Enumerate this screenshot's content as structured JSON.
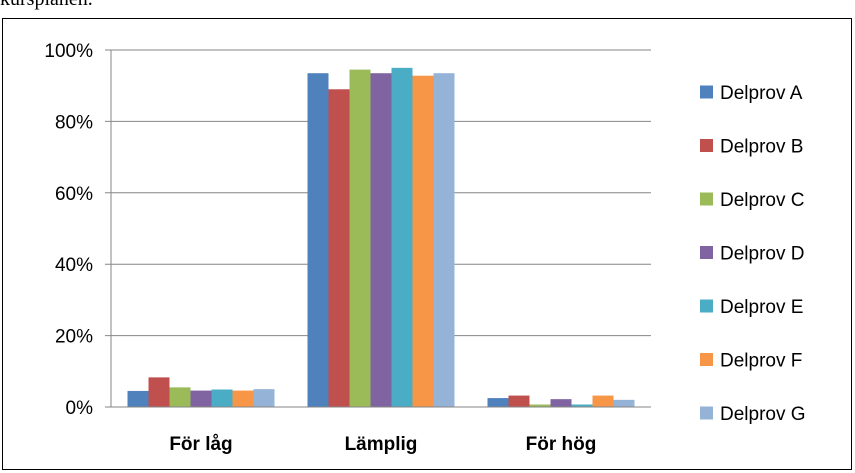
{
  "page": {
    "top_text": "kursplanen."
  },
  "chart_data": {
    "type": "bar",
    "categories": [
      "För låg",
      "Lämplig",
      "För hög"
    ],
    "ylim": [
      0,
      100
    ],
    "yticks": [
      "0%",
      "20%",
      "40%",
      "60%",
      "80%",
      "100%"
    ],
    "grid": true,
    "legend_position": "right",
    "series": [
      {
        "name": "Delprov A",
        "color": "#4F81BD",
        "values": [
          4.5,
          93.5,
          2.5
        ]
      },
      {
        "name": "Delprov B",
        "color": "#C0504D",
        "values": [
          8.3,
          89,
          3.2
        ]
      },
      {
        "name": "Delprov C",
        "color": "#9BBB59",
        "values": [
          5.5,
          94.5,
          0.7
        ]
      },
      {
        "name": "Delprov D",
        "color": "#8064A2",
        "values": [
          4.6,
          93.5,
          2.2
        ]
      },
      {
        "name": "Delprov E",
        "color": "#4BACC6",
        "values": [
          4.9,
          95,
          0.7
        ]
      },
      {
        "name": "Delprov F",
        "color": "#F79646",
        "values": [
          4.6,
          92.8,
          3.2
        ]
      },
      {
        "name": "Delprov G",
        "color": "#95B3D7",
        "values": [
          5,
          93.5,
          2
        ]
      }
    ]
  }
}
